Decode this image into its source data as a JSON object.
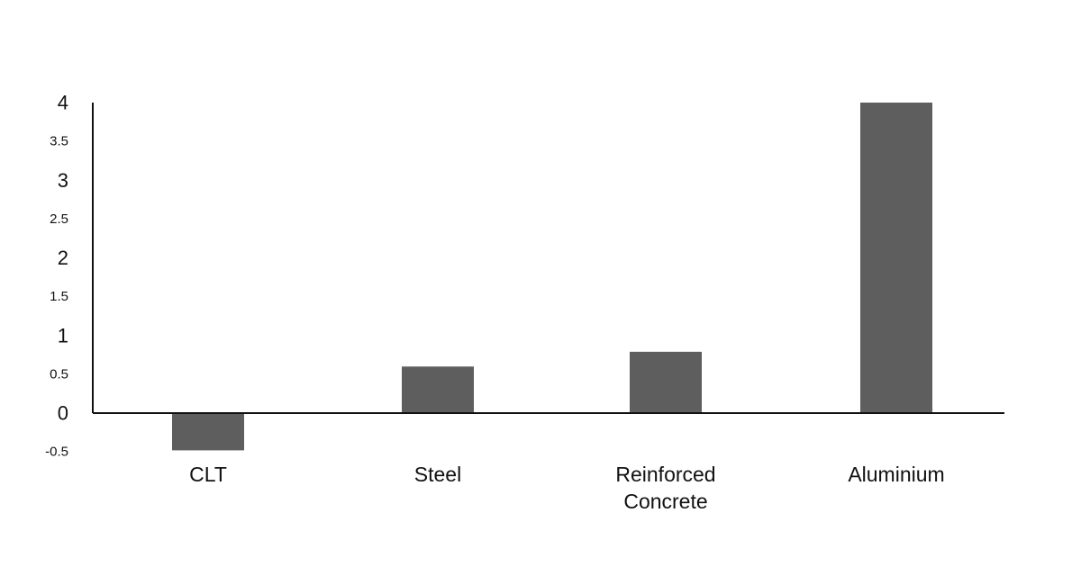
{
  "chart_data": {
    "type": "bar",
    "categories": [
      "CLT",
      "Steel",
      "Reinforced Concrete",
      "Aluminium"
    ],
    "category_label_lines": [
      [
        "CLT"
      ],
      [
        "Steel"
      ],
      [
        "Reinforced",
        "Concrete"
      ],
      [
        "Aluminium"
      ]
    ],
    "values": [
      -0.48,
      0.6,
      0.79,
      4.0
    ],
    "yticks": [
      "4",
      "3.5",
      "3",
      "2.5",
      "2",
      "1.5",
      "1",
      "0.5",
      "0",
      "-0.5"
    ],
    "ylim": [
      -0.5,
      4
    ],
    "title": "",
    "xlabel": "",
    "ylabel": "",
    "grid": false,
    "bar_color": "#5e5e5e",
    "axis_color": "#111111"
  }
}
